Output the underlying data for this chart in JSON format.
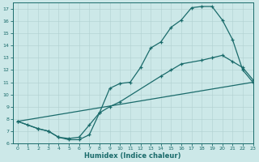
{
  "xlabel": "Humidex (Indice chaleur)",
  "ylabel": "",
  "xlim": [
    -0.5,
    23
  ],
  "ylim": [
    6,
    17.5
  ],
  "yticks": [
    6,
    7,
    8,
    9,
    10,
    11,
    12,
    13,
    14,
    15,
    16,
    17
  ],
  "xticks": [
    0,
    1,
    2,
    3,
    4,
    5,
    6,
    7,
    8,
    9,
    10,
    11,
    12,
    13,
    14,
    15,
    16,
    17,
    18,
    19,
    20,
    21,
    22,
    23
  ],
  "bg_color": "#cce8e8",
  "line_color": "#1a6b6b",
  "line1_x": [
    0,
    1,
    2,
    3,
    4,
    5,
    6,
    7,
    8,
    9,
    10,
    11,
    12,
    13,
    14,
    15,
    16,
    17,
    18,
    19,
    20,
    21,
    22,
    23
  ],
  "line1_y": [
    7.8,
    7.5,
    7.2,
    7.0,
    6.5,
    6.3,
    6.3,
    6.7,
    8.5,
    10.5,
    10.9,
    11.0,
    12.2,
    13.8,
    14.3,
    15.5,
    16.1,
    17.1,
    17.2,
    17.2,
    16.1,
    14.5,
    12.0,
    11.0
  ],
  "line2_x": [
    0,
    2,
    3,
    4,
    5,
    6,
    7,
    8,
    9,
    10,
    14,
    15,
    16,
    18,
    19,
    20,
    21,
    22,
    23
  ],
  "line2_y": [
    7.8,
    7.2,
    7.0,
    6.5,
    6.4,
    6.5,
    7.5,
    8.5,
    9.0,
    9.4,
    11.5,
    12.0,
    12.5,
    12.8,
    13.0,
    13.2,
    12.7,
    12.2,
    11.2
  ],
  "line3_x": [
    0,
    23
  ],
  "line3_y": [
    7.8,
    11.0
  ]
}
